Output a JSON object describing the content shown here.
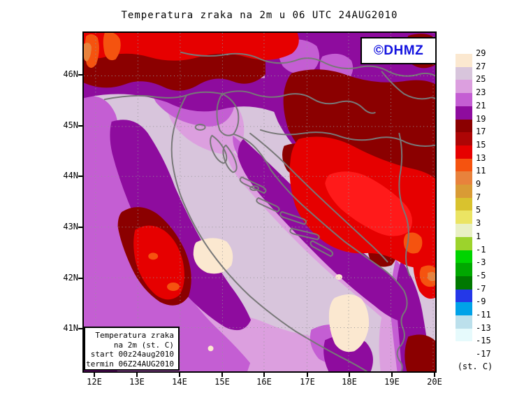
{
  "title": "Temperatura zraka na 2m u 06 UTC 24AUG2010",
  "logo": {
    "text": "©DHMZ"
  },
  "info_box": {
    "line1": "Temperatura zraka",
    "line2": "na 2m (st. C)",
    "line3": "start 00z24aug2010",
    "line4": "termin 06Z24AUG2010"
  },
  "axes": {
    "lat_ticks": [
      "46N",
      "45N",
      "44N",
      "43N",
      "42N",
      "41N"
    ],
    "lon_ticks": [
      "12E",
      "13E",
      "14E",
      "15E",
      "16E",
      "17E",
      "18E",
      "19E",
      "20E"
    ]
  },
  "colorbar": {
    "tick_labels": [
      "29",
      "27",
      "25",
      "23",
      "21",
      "19",
      "17",
      "15",
      "13",
      "11",
      "9",
      "7",
      "5",
      "3",
      "1",
      "-1",
      "-3",
      "-5",
      "-7",
      "-9",
      "-11",
      "-13",
      "-15",
      "-17"
    ],
    "unit_label": "(st. C)"
  },
  "palette": {
    "c27_29": "#FBE8D0",
    "c25_27": "#D8C5DC",
    "c23_25": "#DC9FDF",
    "c21_23": "#C45ED3",
    "c19_21": "#8E0C9E",
    "c17_19": "#8B0000",
    "c15_17": "#AD0505",
    "c13_15": "#E60000",
    "c11_13": "#F5530F",
    "c9_11": "#E8823C",
    "c7_9": "#D99B35",
    "c5_7": "#D9C22E",
    "c3_5": "#EBE463",
    "c1_3": "#E9F0C4",
    "cm1_1": "#9CD32C",
    "cm3_m1": "#00D400",
    "cm5_m3": "#00A800",
    "cm7_m5": "#007800",
    "cm9_m7": "#2438E8",
    "cm11_m9": "#00A2E8",
    "cm13_m11": "#BCE0EC",
    "cm15_m13": "#E6FAFC",
    "cm17_m15": "#FFFFFF",
    "red_core": "#FF1A1A",
    "coast_gray": "#787878",
    "grid_gray": "#979797",
    "logo_blue": "#1313DF"
  }
}
